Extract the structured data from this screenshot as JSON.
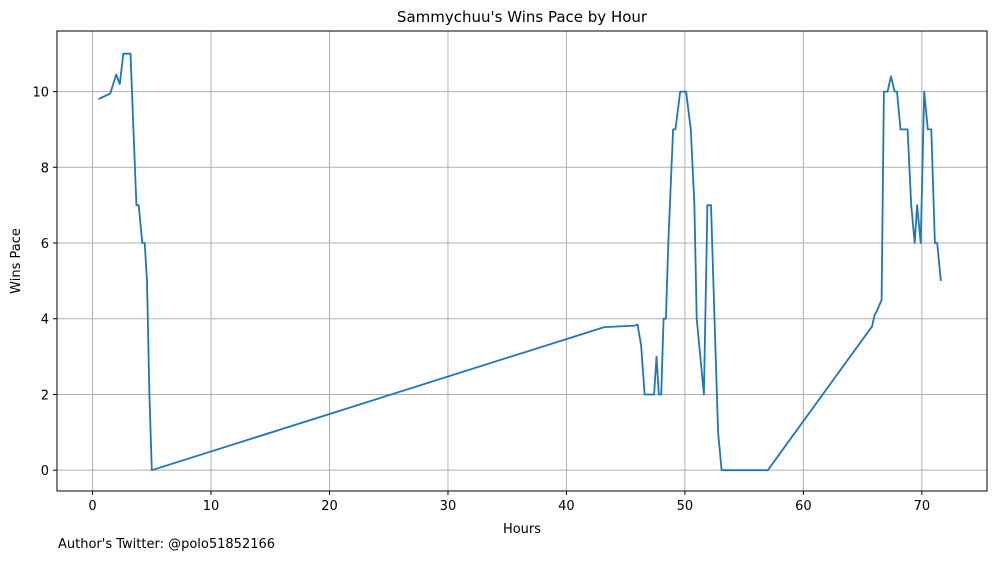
{
  "chart_data": {
    "type": "line",
    "title": "Sammychuu's Wins Pace by Hour",
    "xlabel": "Hours",
    "ylabel": "Wins Pace",
    "xlim": [
      -3,
      75.5
    ],
    "ylim": [
      -0.55,
      11.6
    ],
    "xticks": [
      0,
      10,
      20,
      30,
      40,
      50,
      60,
      70
    ],
    "yticks": [
      0,
      2,
      4,
      6,
      8,
      10
    ],
    "grid": true,
    "series": [
      {
        "color": "#1f77b4",
        "x": [
          0.5,
          1.5,
          2.0,
          2.3,
          2.6,
          3.2,
          3.7,
          3.9,
          4.2,
          4.4,
          4.6,
          4.8,
          5.0,
          43.2,
          45.8,
          46.0,
          46.3,
          46.6,
          47.0,
          47.4,
          47.6,
          47.8,
          48.0,
          48.2,
          48.4,
          48.6,
          49.0,
          49.2,
          49.6,
          49.9,
          50.1,
          50.5,
          50.8,
          51.0,
          51.3,
          51.6,
          51.9,
          52.2,
          52.5,
          52.8,
          53.1,
          53.3,
          57.0,
          65.8,
          66.0,
          66.2,
          66.6,
          66.8,
          67.1,
          67.4,
          67.7,
          67.9,
          68.2,
          68.8,
          69.1,
          69.4,
          69.6,
          69.9,
          70.2,
          70.5,
          70.8,
          71.1,
          71.3,
          71.6
        ],
        "y": [
          9.8,
          9.95,
          10.45,
          10.2,
          11.0,
          11.0,
          7.0,
          7.0,
          6.0,
          6.0,
          5.0,
          2.0,
          0.0,
          3.78,
          3.82,
          3.85,
          3.3,
          2.0,
          2.0,
          2.0,
          3.0,
          2.0,
          2.0,
          4.0,
          4.0,
          6.0,
          9.0,
          9.0,
          10.0,
          10.0,
          10.0,
          9.0,
          7.0,
          4.0,
          3.0,
          2.0,
          7.0,
          7.0,
          4.0,
          1.0,
          0.0,
          0.0,
          0.0,
          3.8,
          4.1,
          4.2,
          4.5,
          10.0,
          10.0,
          10.4,
          10.0,
          10.0,
          9.0,
          9.0,
          7.0,
          6.0,
          7.0,
          6.0,
          10.0,
          9.0,
          9.0,
          6.0,
          6.0,
          5.0
        ]
      }
    ]
  },
  "footer": {
    "note": "Author's Twitter: @polo51852166"
  }
}
